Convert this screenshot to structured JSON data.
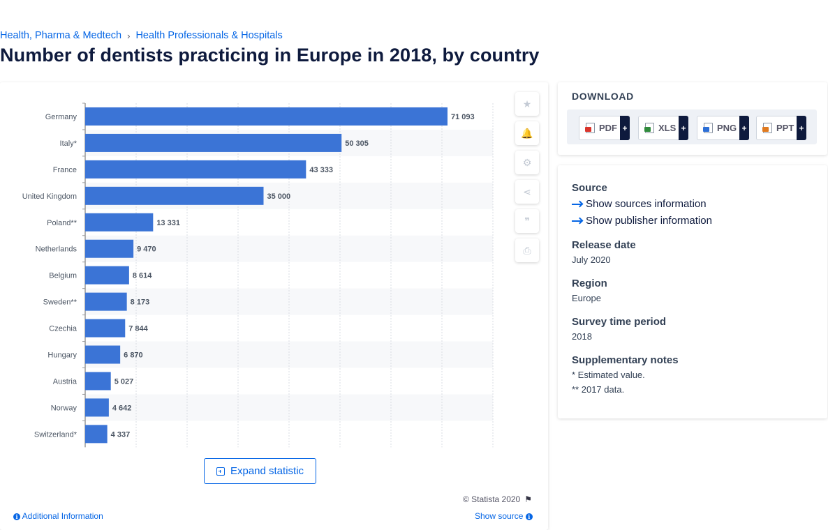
{
  "breadcrumb": [
    "Health, Pharma & Medtech",
    "Health Professionals & Hospitals"
  ],
  "breadcrumb_separator": "›",
  "page_title": "Number of dentists practicing in Europe in 2018, by country",
  "chart_data": {
    "type": "bar",
    "orientation": "horizontal",
    "categories": [
      "Germany",
      "Italy*",
      "France",
      "United Kingdom",
      "Poland**",
      "Netherlands",
      "Belgium",
      "Sweden**",
      "Czechia",
      "Hungary",
      "Austria",
      "Norway",
      "Switzerland*"
    ],
    "values": [
      71093,
      50305,
      43333,
      35000,
      13331,
      9470,
      8614,
      8173,
      7844,
      6870,
      5027,
      4642,
      4337
    ],
    "value_labels": [
      "71 093",
      "50 305",
      "43 333",
      "35 000",
      "13 331",
      "9 470",
      "8 614",
      "8 173",
      "7 844",
      "6 870",
      "5 027",
      "4 642",
      "4 337"
    ],
    "xlim": [
      0,
      80000
    ],
    "grid": true,
    "title": "",
    "xlabel": "",
    "ylabel": "",
    "bar_color": "#3b74d6"
  },
  "tools": [
    {
      "name": "favorite-button",
      "icon": "star-icon",
      "glyph": "★"
    },
    {
      "name": "notification-button",
      "icon": "bell-icon",
      "glyph": "🔔"
    },
    {
      "name": "settings-button",
      "icon": "gear-icon",
      "glyph": "⚙"
    },
    {
      "name": "share-button",
      "icon": "share-icon",
      "glyph": "⋖"
    },
    {
      "name": "cite-button",
      "icon": "quote-icon",
      "glyph": "❞"
    },
    {
      "name": "print-button",
      "icon": "print-icon",
      "glyph": "⎙"
    }
  ],
  "expand_label": "Expand statistic",
  "copyright": "© Statista 2020",
  "additional_info": "Additional Information",
  "show_source": "Show source",
  "download": {
    "title": "DOWNLOAD",
    "buttons": [
      {
        "label": "PDF",
        "badge_color": "#d9342b"
      },
      {
        "label": "XLS",
        "badge_color": "#2f8a3c"
      },
      {
        "label": "PNG",
        "badge_color": "#2d6fd6"
      },
      {
        "label": "PPT",
        "badge_color": "#e07a1f"
      }
    ],
    "plus": "+"
  },
  "info": {
    "source_heading": "Source",
    "show_sources": "Show sources information",
    "show_publisher": "Show publisher information",
    "release_heading": "Release date",
    "release_value": "July 2020",
    "region_heading": "Region",
    "region_value": "Europe",
    "survey_heading": "Survey time period",
    "survey_value": "2018",
    "notes_heading": "Supplementary notes",
    "notes": [
      "* Estimated value.",
      "** 2017 data."
    ]
  }
}
